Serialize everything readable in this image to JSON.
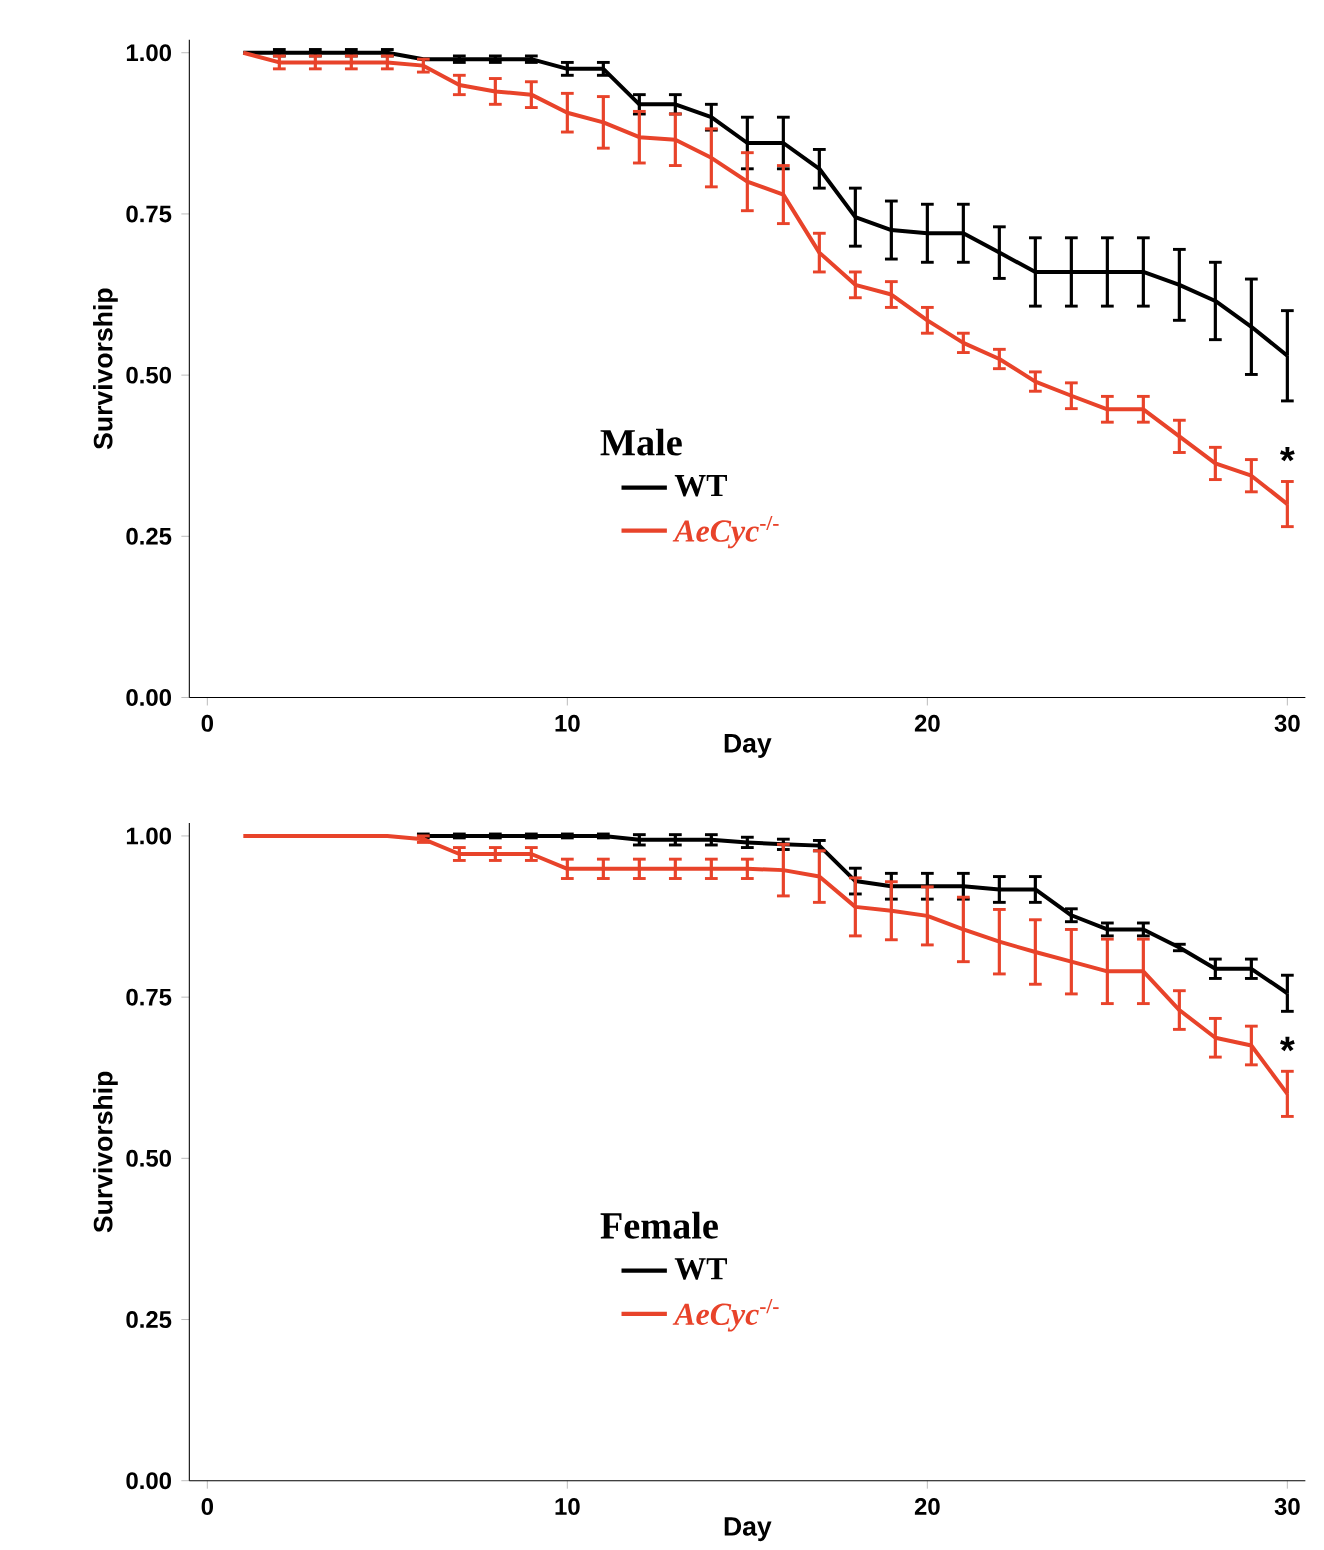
{
  "chart_data": [
    {
      "type": "line",
      "legend_title": "Male",
      "xlabel": "Day",
      "ylabel": "Survivorship",
      "legend": "center",
      "x": [
        1,
        2,
        3,
        4,
        5,
        6,
        7,
        8,
        9,
        10,
        11,
        12,
        13,
        14,
        15,
        16,
        17,
        18,
        19,
        20,
        21,
        22,
        23,
        24,
        25,
        26,
        27,
        28,
        29,
        30
      ],
      "xlim": [
        -0.5,
        30.5
      ],
      "ylim": [
        0,
        1.02
      ],
      "xticks": [
        0,
        10,
        20,
        30
      ],
      "yticks": [
        {
          "value": 0,
          "label": "0.00"
        },
        {
          "value": 0.25,
          "label": "0.25"
        },
        {
          "value": 0.5,
          "label": "0.50"
        },
        {
          "value": 0.75,
          "label": "0.75"
        },
        {
          "value": 1,
          "label": "1.00"
        }
      ],
      "annotations": [
        {
          "text": "*",
          "x": 30,
          "y": 0.3
        }
      ],
      "series": [
        {
          "name": "WT",
          "color": "#000000",
          "values": [
            1.0,
            1.0,
            1.0,
            1.0,
            1.0,
            0.99,
            0.99,
            0.99,
            0.99,
            0.975,
            0.975,
            0.92,
            0.92,
            0.9,
            0.86,
            0.86,
            0.82,
            0.745,
            0.725,
            0.72,
            0.72,
            0.69,
            0.66,
            0.66,
            0.66,
            0.66,
            0.64,
            0.615,
            0.575,
            0.53
          ],
          "errors": [
            null,
            0.005,
            0.005,
            0.005,
            0.005,
            null,
            0.005,
            0.005,
            0.005,
            0.01,
            0.01,
            0.015,
            0.015,
            0.02,
            0.04,
            0.04,
            0.03,
            0.045,
            0.045,
            0.045,
            0.045,
            0.04,
            0.053,
            0.053,
            0.053,
            0.053,
            0.055,
            0.06,
            0.074,
            0.07
          ]
        },
        {
          "name": "*AeCyc*$^{-/-}$",
          "color": "#e8432a",
          "values": [
            1.0,
            0.985,
            0.985,
            0.985,
            0.985,
            0.98,
            0.95,
            0.94,
            0.935,
            0.907,
            0.892,
            0.869,
            0.865,
            0.837,
            0.8,
            0.78,
            0.69,
            0.64,
            0.625,
            0.585,
            0.55,
            0.525,
            0.49,
            0.468,
            0.447,
            0.447,
            0.405,
            0.363,
            0.344,
            0.3
          ],
          "errors": [
            null,
            0.01,
            0.01,
            0.01,
            0.01,
            0.01,
            0.015,
            0.02,
            0.02,
            0.03,
            0.04,
            0.04,
            0.04,
            0.045,
            0.045,
            0.045,
            0.03,
            0.02,
            0.02,
            0.02,
            0.015,
            0.015,
            0.015,
            0.02,
            0.02,
            0.02,
            0.025,
            0.025,
            0.025,
            0.035
          ]
        }
      ]
    },
    {
      "type": "line",
      "legend_title": "Female",
      "xlabel": "Day",
      "ylabel": "Survivorship",
      "legend": "center",
      "x": [
        1,
        2,
        3,
        4,
        5,
        6,
        7,
        8,
        9,
        10,
        11,
        12,
        13,
        14,
        15,
        16,
        17,
        18,
        19,
        20,
        21,
        22,
        23,
        24,
        25,
        26,
        27,
        28,
        29,
        30
      ],
      "xlim": [
        -0.5,
        30.5
      ],
      "ylim": [
        0,
        1.02
      ],
      "xticks": [
        0,
        10,
        20,
        30
      ],
      "yticks": [
        {
          "value": 0,
          "label": "0.00"
        },
        {
          "value": 0.25,
          "label": "0.25"
        },
        {
          "value": 0.5,
          "label": "0.50"
        },
        {
          "value": 0.75,
          "label": "0.75"
        },
        {
          "value": 1,
          "label": "1.00"
        }
      ],
      "annotations": [
        {
          "text": "*",
          "x": 30,
          "y": 0.6
        }
      ],
      "series": [
        {
          "name": "WT",
          "color": "#000000",
          "values": [
            null,
            null,
            null,
            null,
            null,
            1.0,
            1.0,
            1.0,
            1.0,
            1.0,
            1.0,
            0.994,
            0.994,
            0.994,
            0.99,
            0.987,
            0.985,
            0.93,
            0.922,
            0.922,
            0.922,
            0.917,
            0.917,
            0.877,
            0.855,
            0.855,
            0.827,
            0.794,
            0.794,
            0.756
          ],
          "errors": [
            null,
            null,
            null,
            null,
            null,
            0.003,
            0.003,
            0.003,
            0.003,
            0.003,
            0.003,
            0.008,
            0.008,
            0.008,
            0.008,
            0.008,
            0.008,
            0.02,
            0.02,
            0.02,
            0.02,
            0.02,
            0.02,
            0.01,
            0.01,
            0.01,
            0.005,
            0.015,
            0.015,
            0.028
          ]
        },
        {
          "name": "*AeCyc*$^{-/-}$",
          "color": "#e8432a",
          "values": [
            1.0,
            1.0,
            1.0,
            1.0,
            1.0,
            0.995,
            0.972,
            0.972,
            0.972,
            0.949,
            0.949,
            0.949,
            0.949,
            0.949,
            0.949,
            0.947,
            0.937,
            0.89,
            0.884,
            0.876,
            0.855,
            0.836,
            0.82,
            0.805,
            0.79,
            0.79,
            0.73,
            0.687,
            0.675,
            0.6
          ],
          "errors": [
            null,
            null,
            null,
            null,
            null,
            0.005,
            0.01,
            0.01,
            0.01,
            0.015,
            0.015,
            0.015,
            0.015,
            0.015,
            0.015,
            0.04,
            0.04,
            0.045,
            0.045,
            0.045,
            0.05,
            0.05,
            0.05,
            0.05,
            0.05,
            0.05,
            0.03,
            0.03,
            0.03,
            0.035
          ]
        }
      ]
    }
  ]
}
